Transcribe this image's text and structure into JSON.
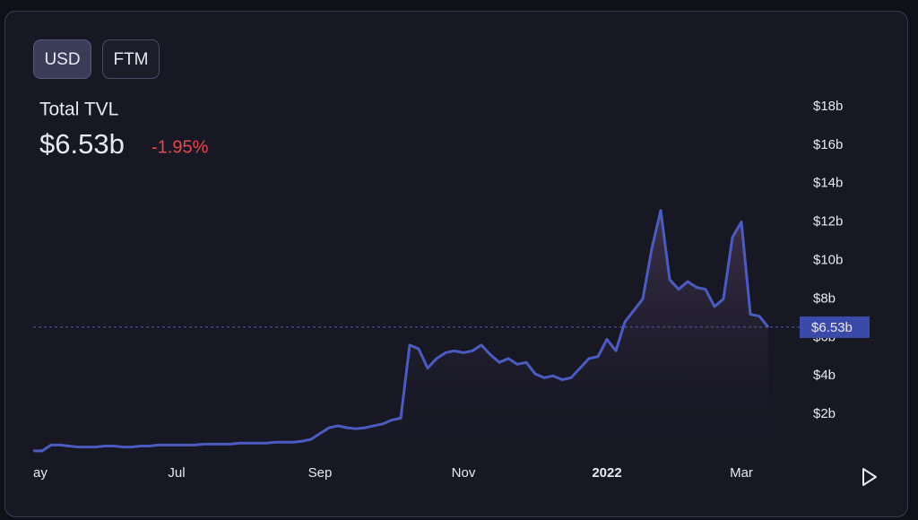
{
  "buttons": [
    "USD",
    "FTM"
  ],
  "header": {
    "title": "Total TVL",
    "value": "$6.53b",
    "change": "-1.95%"
  },
  "chart_data": {
    "type": "area",
    "categories": [
      "ay",
      null,
      null,
      null,
      null,
      null,
      null,
      null,
      null,
      null,
      null,
      null,
      null,
      null,
      null,
      null,
      "Jul",
      null,
      null,
      null,
      null,
      null,
      null,
      null,
      null,
      null,
      null,
      null,
      null,
      null,
      null,
      null,
      "Sep",
      null,
      null,
      null,
      null,
      null,
      null,
      null,
      null,
      null,
      null,
      null,
      null,
      null,
      null,
      null,
      "Nov",
      null,
      null,
      null,
      null,
      null,
      null,
      null,
      null,
      null,
      null,
      null,
      null,
      null,
      null,
      null,
      "2022",
      null,
      null,
      null,
      null,
      null,
      null,
      null,
      null,
      null,
      null,
      null,
      null,
      null,
      null,
      "Mar",
      null,
      null,
      null
    ],
    "series": [
      {
        "color": "#4b5bc0",
        "values": [
          0.1,
          0.1,
          0.4,
          0.4,
          0.35,
          0.3,
          0.3,
          0.3,
          0.35,
          0.35,
          0.3,
          0.3,
          0.35,
          0.35,
          0.4,
          0.4,
          0.4,
          0.4,
          0.4,
          0.45,
          0.45,
          0.45,
          0.45,
          0.5,
          0.5,
          0.5,
          0.5,
          0.55,
          0.55,
          0.55,
          0.6,
          0.7,
          1.0,
          1.3,
          1.4,
          1.3,
          1.25,
          1.3,
          1.4,
          1.5,
          1.7,
          1.8,
          5.6,
          5.4,
          4.4,
          4.9,
          5.2,
          5.3,
          5.2,
          5.3,
          5.6,
          5.1,
          4.7,
          4.9,
          4.6,
          4.7,
          4.1,
          3.9,
          4.0,
          3.8,
          3.9,
          4.4,
          4.9,
          5.0,
          5.9,
          5.3,
          6.8,
          7.4,
          8.0,
          10.6,
          12.6,
          9.0,
          8.5,
          8.9,
          8.6,
          8.5,
          7.6,
          8.0,
          11.2,
          12.0,
          7.2,
          7.1,
          6.53
        ]
      }
    ],
    "ylim": [
      0,
      20
    ],
    "yticks": [
      {
        "value": 2,
        "label": "$2b"
      },
      {
        "value": 4,
        "label": "$4b"
      },
      {
        "value": 6,
        "label": "$6b"
      },
      {
        "value": 8,
        "label": "$8b"
      },
      {
        "value": 10,
        "label": "$10b"
      },
      {
        "value": 12,
        "label": "$12b"
      },
      {
        "value": 14,
        "label": "$14b"
      },
      {
        "value": 16,
        "label": "$16b"
      },
      {
        "value": 18,
        "label": "$18b"
      }
    ],
    "current": {
      "value": 6.53,
      "label": "$6.53b"
    }
  }
}
